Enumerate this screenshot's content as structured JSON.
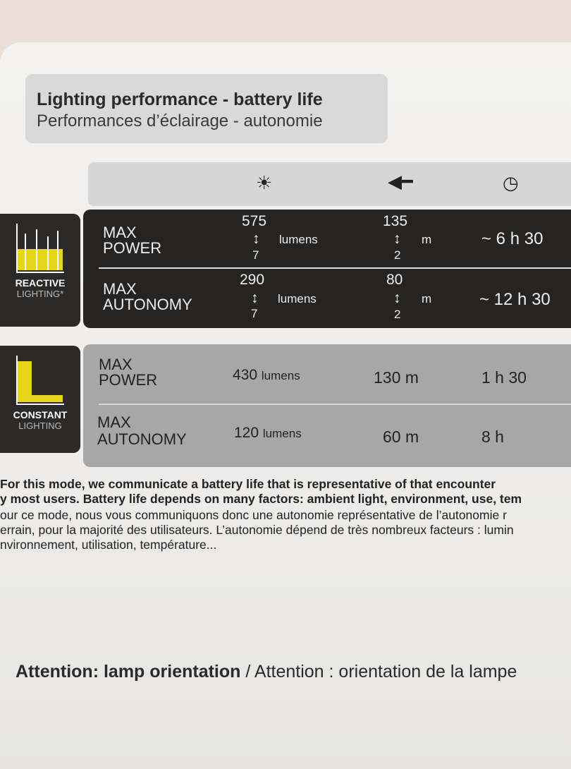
{
  "title": {
    "en": "Lighting performance - battery life",
    "fr": "Performances d’éclairage - autonomie"
  },
  "header_icons": [
    "brightness-icon",
    "beam-distance-icon",
    "clock-icon"
  ],
  "reactive": {
    "mode_label": "REACTIVE",
    "mode_sub": "LIGHTING*",
    "accent": "#e6d51a",
    "rows": [
      {
        "label1": "MAX",
        "label2": "POWER",
        "lumens_max": "575",
        "lumens_min": "7",
        "lumens_unit": "lumens",
        "dist_max": "135",
        "dist_min": "2",
        "dist_unit": "m",
        "time": "~ 6 h 30"
      },
      {
        "label1": "MAX",
        "label2": "AUTONOMY",
        "lumens_max": "290",
        "lumens_min": "7",
        "lumens_unit": "lumens",
        "dist_max": "80",
        "dist_min": "2",
        "dist_unit": "m",
        "time": "~ 12 h 30"
      }
    ]
  },
  "constant": {
    "mode_label": "CONSTANT",
    "mode_sub": "LIGHTING",
    "rows": [
      {
        "label1": "MAX",
        "label2": "POWER",
        "lumens": "430",
        "lumens_unit": "lumens",
        "dist": "130 m",
        "time": "1 h 30"
      },
      {
        "label1": "MAX",
        "label2": "AUTONOMY",
        "lumens": "120",
        "lumens_unit": "lumens",
        "dist": "60 m",
        "time": "8 h"
      }
    ]
  },
  "note": {
    "en1": "For this mode, we communicate a battery life that is representative of that encounter",
    "en2": "y most users. Battery life depends on many factors: ambient light, environment, use, tem",
    "fr1": "our ce mode, nous vous communiquons donc une autonomie représentative de l’autonomie r",
    "fr2": "errain, pour la majorité des utilisateurs. L’autonomie dépend de très nombreux facteurs : lumin",
    "fr3": "nvironnement, utilisation, température..."
  },
  "attention": {
    "en": "Attention: lamp orientation",
    "sep": " / ",
    "fr": "Attention : orientation de la lampe"
  }
}
